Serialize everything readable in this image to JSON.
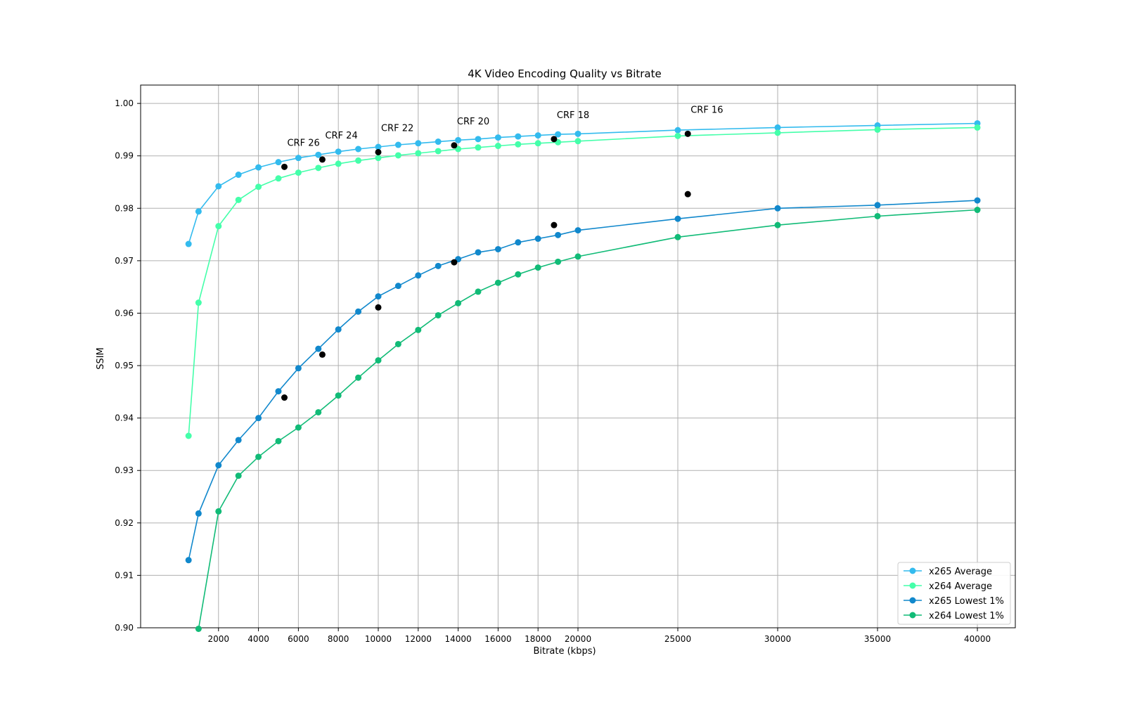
{
  "chart_data": {
    "type": "line",
    "title": "4K Video Encoding Quality vs Bitrate",
    "xlabel": "Bitrate (kbps)",
    "ylabel": "SSIM",
    "xlim": [
      -1900,
      41900
    ],
    "ylim": [
      0.9,
      1.0035
    ],
    "x_ticks": [
      2000,
      4000,
      6000,
      8000,
      10000,
      12000,
      14000,
      16000,
      18000,
      20000,
      25000,
      30000,
      35000,
      40000
    ],
    "y_ticks": [
      0.9,
      0.91,
      0.92,
      0.93,
      0.94,
      0.95,
      0.96,
      0.97,
      0.98,
      0.99,
      1.0
    ],
    "grid": true,
    "legend_position": "lower-right",
    "series": [
      {
        "name": "x265 Average",
        "color": "#33bbee",
        "x": [
          500,
          1000,
          2000,
          3000,
          4000,
          5000,
          6000,
          7000,
          8000,
          9000,
          10000,
          11000,
          12000,
          13000,
          14000,
          15000,
          16000,
          17000,
          18000,
          19000,
          20000,
          25000,
          30000,
          35000,
          40000
        ],
        "y": [
          0.9732,
          0.9794,
          0.9842,
          0.9864,
          0.9878,
          0.9888,
          0.9896,
          0.9902,
          0.9908,
          0.9913,
          0.9917,
          0.9921,
          0.9924,
          0.9927,
          0.993,
          0.9932,
          0.9935,
          0.9937,
          0.9939,
          0.9941,
          0.9942,
          0.9949,
          0.9954,
          0.9958,
          0.9962
        ]
      },
      {
        "name": "x264 Average",
        "color": "#44ffaa",
        "x": [
          500,
          1000,
          2000,
          3000,
          4000,
          5000,
          6000,
          7000,
          8000,
          9000,
          10000,
          11000,
          12000,
          13000,
          14000,
          15000,
          16000,
          17000,
          18000,
          19000,
          20000,
          25000,
          30000,
          35000,
          40000
        ],
        "y": [
          0.9366,
          0.962,
          0.9766,
          0.9816,
          0.9841,
          0.9857,
          0.9868,
          0.9877,
          0.9885,
          0.9891,
          0.9896,
          0.9901,
          0.9905,
          0.9909,
          0.9913,
          0.9916,
          0.9919,
          0.9922,
          0.9924,
          0.9926,
          0.9928,
          0.9938,
          0.9944,
          0.995,
          0.9954
        ]
      },
      {
        "name": "x265 Lowest 1%",
        "color": "#1188cc",
        "x": [
          500,
          1000,
          2000,
          3000,
          4000,
          5000,
          6000,
          7000,
          8000,
          9000,
          10000,
          11000,
          12000,
          13000,
          14000,
          15000,
          16000,
          17000,
          18000,
          19000,
          20000,
          25000,
          30000,
          35000,
          40000
        ],
        "y": [
          0.9129,
          0.9218,
          0.931,
          0.9358,
          0.94,
          0.9451,
          0.9495,
          0.9532,
          0.9569,
          0.9603,
          0.9632,
          0.9652,
          0.9672,
          0.969,
          0.9703,
          0.9716,
          0.9722,
          0.9735,
          0.9742,
          0.9749,
          0.9758,
          0.978,
          0.98,
          0.9806,
          0.9815
        ]
      },
      {
        "name": "x264 Lowest 1%",
        "color": "#11bb77",
        "x": [
          1000,
          2000,
          3000,
          4000,
          5000,
          6000,
          7000,
          8000,
          9000,
          10000,
          11000,
          12000,
          13000,
          14000,
          15000,
          16000,
          17000,
          18000,
          19000,
          20000,
          25000,
          30000,
          35000,
          40000
        ],
        "y": [
          0.8998,
          0.9222,
          0.929,
          0.9326,
          0.9356,
          0.9382,
          0.9411,
          0.9443,
          0.9477,
          0.951,
          0.9541,
          0.9568,
          0.9596,
          0.9619,
          0.9641,
          0.9658,
          0.9674,
          0.9687,
          0.9698,
          0.9708,
          0.9745,
          0.9768,
          0.9785,
          0.9797
        ]
      }
    ],
    "crf_points": {
      "color": "#000000",
      "x": [
        5300,
        7200,
        10000,
        13800,
        18800,
        25500
      ],
      "avg_y": [
        0.9879,
        0.9893,
        0.9907,
        0.992,
        0.9932,
        0.9942
      ],
      "low_y": [
        0.9439,
        0.9521,
        0.9611,
        0.9697,
        0.9768,
        0.9827
      ]
    },
    "annotations": [
      {
        "text": "CRF 26",
        "x": 5300,
        "y": 0.9879
      },
      {
        "text": "CRF 24",
        "x": 7200,
        "y": 0.9893
      },
      {
        "text": "CRF 22",
        "x": 10000,
        "y": 0.9907
      },
      {
        "text": "CRF 20",
        "x": 13800,
        "y": 0.992
      },
      {
        "text": "CRF 18",
        "x": 18800,
        "y": 0.9932
      },
      {
        "text": "CRF 16",
        "x": 25500,
        "y": 0.9942
      }
    ]
  }
}
